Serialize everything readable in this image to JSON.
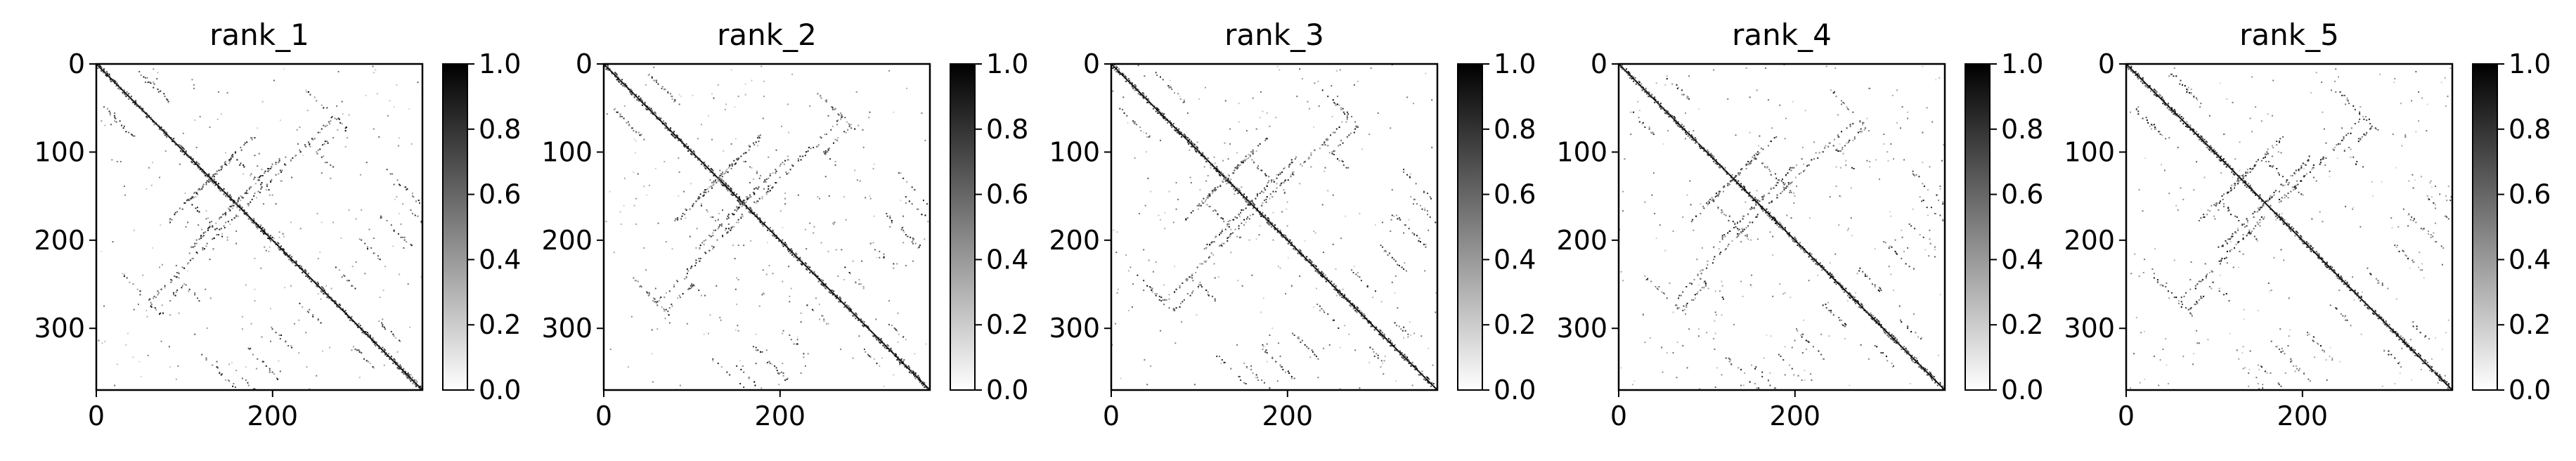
{
  "figure": {
    "panel_count": 5
  },
  "chart_data": [
    {
      "type": "heatmap",
      "title": "rank_1",
      "xlabel": "",
      "ylabel": "",
      "matrix_size": 370,
      "xlim": [
        0,
        370
      ],
      "ylim": [
        370,
        0
      ],
      "x_ticks": [
        0,
        200
      ],
      "y_ticks": [
        0,
        100,
        200,
        300
      ],
      "colorbar": {
        "range": [
          0.0,
          1.0
        ],
        "ticks": [
          "0.0",
          "0.2",
          "0.4",
          "0.6",
          "0.8",
          "1.0"
        ],
        "colormap": "gray_r"
      },
      "colors": {
        "low": "#ffffff",
        "high": "#000000"
      },
      "pattern": "symmetric contact map: strong main diagonal with sparse off-diagonal contacts"
    },
    {
      "type": "heatmap",
      "title": "rank_2",
      "xlabel": "",
      "ylabel": "",
      "matrix_size": 370,
      "xlim": [
        0,
        370
      ],
      "ylim": [
        370,
        0
      ],
      "x_ticks": [
        0,
        200
      ],
      "y_ticks": [
        0,
        100,
        200,
        300
      ],
      "colorbar": {
        "range": [
          0.0,
          1.0
        ],
        "ticks": [
          "0.0",
          "0.2",
          "0.4",
          "0.6",
          "0.8",
          "1.0"
        ],
        "colormap": "gray_r"
      },
      "colors": {
        "low": "#ffffff",
        "high": "#000000"
      },
      "pattern": "symmetric contact map: strong main diagonal with sparse off-diagonal contacts"
    },
    {
      "type": "heatmap",
      "title": "rank_3",
      "xlabel": "",
      "ylabel": "",
      "matrix_size": 370,
      "xlim": [
        0,
        370
      ],
      "ylim": [
        370,
        0
      ],
      "x_ticks": [
        0,
        200
      ],
      "y_ticks": [
        0,
        100,
        200,
        300
      ],
      "colorbar": {
        "range": [
          0.0,
          1.0
        ],
        "ticks": [
          "0.0",
          "0.2",
          "0.4",
          "0.6",
          "0.8",
          "1.0"
        ],
        "colormap": "gray_r"
      },
      "colors": {
        "low": "#ffffff",
        "high": "#000000"
      },
      "pattern": "symmetric contact map: strong main diagonal with sparse off-diagonal contacts"
    },
    {
      "type": "heatmap",
      "title": "rank_4",
      "xlabel": "",
      "ylabel": "",
      "matrix_size": 370,
      "xlim": [
        0,
        370
      ],
      "ylim": [
        370,
        0
      ],
      "x_ticks": [
        0,
        200
      ],
      "y_ticks": [
        0,
        100,
        200,
        300
      ],
      "colorbar": {
        "range": [
          0.0,
          1.0
        ],
        "ticks": [
          "0.0",
          "0.2",
          "0.4",
          "0.6",
          "0.8",
          "1.0"
        ],
        "colormap": "gray_r"
      },
      "colors": {
        "low": "#ffffff",
        "high": "#000000"
      },
      "pattern": "symmetric contact map: strong main diagonal with sparse off-diagonal contacts"
    },
    {
      "type": "heatmap",
      "title": "rank_5",
      "xlabel": "",
      "ylabel": "",
      "matrix_size": 370,
      "xlim": [
        0,
        370
      ],
      "ylim": [
        370,
        0
      ],
      "x_ticks": [
        0,
        200
      ],
      "y_ticks": [
        0,
        100,
        200,
        300
      ],
      "colorbar": {
        "range": [
          0.0,
          1.0
        ],
        "ticks": [
          "0.0",
          "0.2",
          "0.4",
          "0.6",
          "0.8",
          "1.0"
        ],
        "colormap": "gray_r"
      },
      "colors": {
        "low": "#ffffff",
        "high": "#000000"
      },
      "pattern": "symmetric contact map: strong main diagonal with sparse off-diagonal contacts"
    }
  ]
}
